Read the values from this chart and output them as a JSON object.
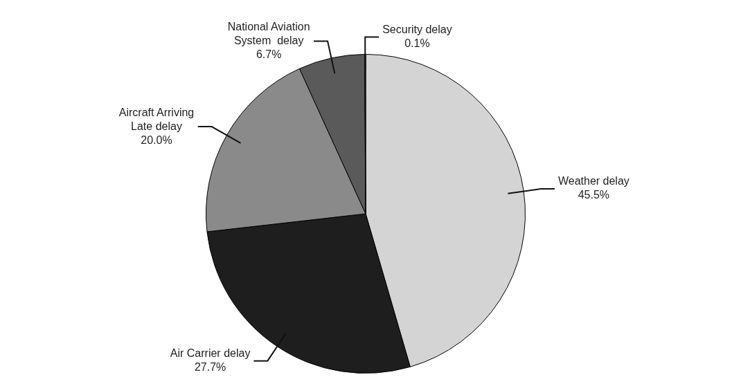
{
  "chart_data": {
    "type": "pie",
    "categories": [
      "Weather delay",
      "Air Carrier delay",
      "Aircraft Arriving Late delay",
      "National Aviation System  delay",
      "Security delay"
    ],
    "values": [
      45.5,
      27.7,
      20.0,
      6.7,
      0.1
    ],
    "value_labels": [
      "45.5%",
      "27.7%",
      "20.0%",
      "6.7%",
      "0.1%"
    ],
    "colors": [
      "#d4d4d4",
      "#1e1e1e",
      "#8a8a8a",
      "#5a5a5a",
      "#3a3a3a"
    ],
    "legend": false
  }
}
